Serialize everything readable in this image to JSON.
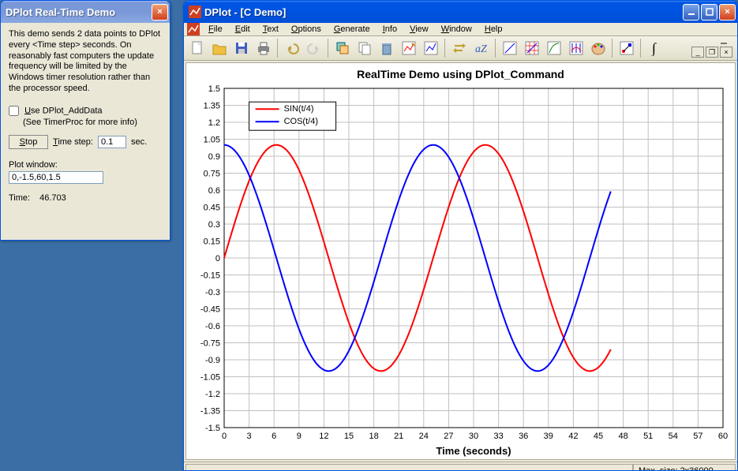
{
  "demo_window": {
    "title": "DPlot Real-Time Demo",
    "description": "This demo sends 2 data points to DPlot every <Time step> seconds. On reasonably fast computers the update frequency will be limited by the Windows timer resolution rather than the processor speed.",
    "use_adddata_label": "Use DPlot_AddData",
    "sub_note": "(See TimerProc for more info)",
    "stop_label": "Stop",
    "timestep_label": "Time step:",
    "timestep_value": "0.1",
    "timestep_unit": "sec.",
    "plotwin_label": "Plot window:",
    "plotwin_value": "0,-1.5,60,1.5",
    "time_label": "Time:",
    "time_value": "46.703"
  },
  "dplot_window": {
    "title": "DPlot - [C Demo]"
  },
  "menu": {
    "file": "File",
    "edit": "Edit",
    "text": "Text",
    "options": "Options",
    "generate": "Generate",
    "info": "Info",
    "view": "View",
    "window": "Window",
    "help": "Help"
  },
  "chart": {
    "title": "RealTime Demo using DPlot_Command",
    "xlabel": "Time (seconds)",
    "xlim": [
      0,
      60
    ],
    "xtick_step": 3,
    "ylim": [
      -1.5,
      1.5
    ],
    "ytick_step": 0.15,
    "grid_color": "#c0c0c0",
    "background_color": "#ffffff",
    "time_max": 46.703,
    "series": [
      {
        "label": "SIN(t/4)",
        "color": "#ff0000",
        "fn": "sin"
      },
      {
        "label": "COS(t/4)",
        "color": "#0000ff",
        "fn": "cos"
      }
    ]
  },
  "status": {
    "max_size": "Max. size: 2x36000"
  }
}
